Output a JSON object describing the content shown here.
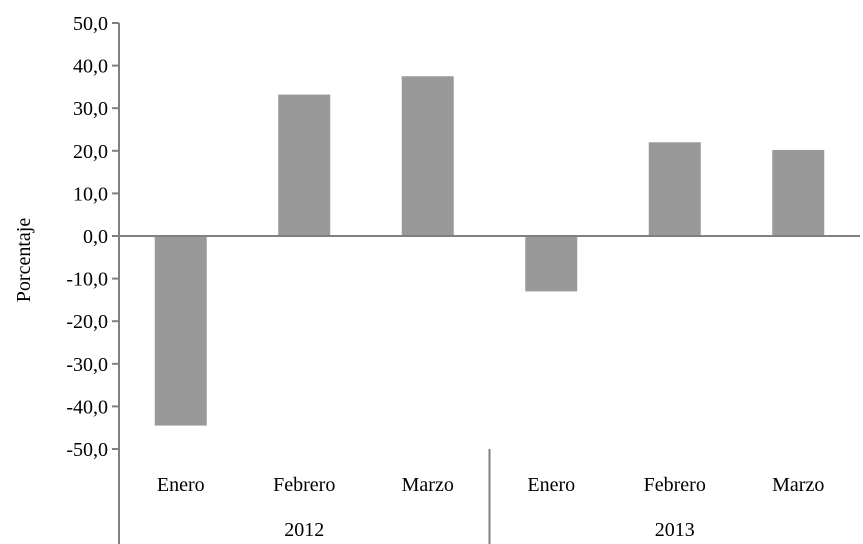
{
  "chart_data": {
    "type": "bar",
    "title": "",
    "xlabel": "",
    "ylabel": "Porcentaje",
    "ylim": [
      -50,
      50
    ],
    "y_ticks": [
      50,
      40,
      30,
      20,
      10,
      0,
      -10,
      -20,
      -30,
      -40,
      -50
    ],
    "y_tick_labels": [
      "50,0",
      "40,0",
      "30,0",
      "20,0",
      "10,0",
      "0,0",
      "-10,0",
      "-20,0",
      "-30,0",
      "-40,0",
      "-50,0"
    ],
    "categories": [
      "Enero",
      "Febrero",
      "Marzo",
      "Enero",
      "Febrero",
      "Marzo"
    ],
    "groups": [
      {
        "label": "2012",
        "categories": [
          "Enero",
          "Febrero",
          "Marzo"
        ]
      },
      {
        "label": "2013",
        "categories": [
          "Enero",
          "Febrero",
          "Marzo"
        ]
      }
    ],
    "values": [
      -44.5,
      33.2,
      37.5,
      -13.0,
      22.0,
      20.2
    ],
    "bar_color": "#999999",
    "grid": false,
    "legend": "none"
  }
}
